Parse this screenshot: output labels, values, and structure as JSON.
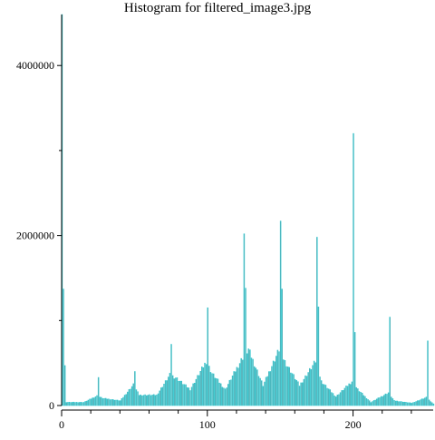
{
  "chart_data": {
    "type": "bar",
    "title": "Histogram for filtered_image3.jpg",
    "xlabel": "",
    "ylabel": "",
    "xlim": [
      0,
      255
    ],
    "ylim": [
      0,
      4600000
    ],
    "x_ticks": [
      0,
      100,
      200
    ],
    "x_minor_ticks": [
      0,
      20,
      40,
      60,
      80,
      100,
      120,
      140,
      160,
      180,
      200,
      220,
      240
    ],
    "y_ticks": [
      0,
      2000000,
      4000000
    ],
    "y_minor_ticks": [
      1000000,
      3000000
    ],
    "x_tick_labels": [
      "0",
      "100",
      "200"
    ],
    "y_tick_labels": [
      "0",
      "2000000",
      "4000000"
    ],
    "grid": false,
    "legend": "none",
    "colors": {
      "bar_fill": "#9a8f95",
      "bar_edge": "#2ec8d0",
      "axis": "#000000",
      "background": "#ffffff"
    },
    "peaks": [
      {
        "x": 0,
        "value": 4600000
      },
      {
        "x": 1,
        "value": 1370000
      },
      {
        "x": 2,
        "value": 470000
      },
      {
        "x": 25,
        "value": 330000
      },
      {
        "x": 50,
        "value": 400000
      },
      {
        "x": 75,
        "value": 720000
      },
      {
        "x": 100,
        "value": 1150000
      },
      {
        "x": 125,
        "value": 2020000
      },
      {
        "x": 126,
        "value": 1380000
      },
      {
        "x": 150,
        "value": 2170000
      },
      {
        "x": 151,
        "value": 1370000
      },
      {
        "x": 175,
        "value": 1980000
      },
      {
        "x": 176,
        "value": 1160000
      },
      {
        "x": 200,
        "value": 3200000
      },
      {
        "x": 201,
        "value": 860000
      },
      {
        "x": 225,
        "value": 1040000
      },
      {
        "x": 251,
        "value": 760000
      }
    ],
    "envelope": [
      {
        "x": 3,
        "value": 40000
      },
      {
        "x": 15,
        "value": 40000
      },
      {
        "x": 24,
        "value": 120000
      },
      {
        "x": 28,
        "value": 90000
      },
      {
        "x": 40,
        "value": 60000
      },
      {
        "x": 49,
        "value": 260000
      },
      {
        "x": 53,
        "value": 130000
      },
      {
        "x": 65,
        "value": 130000
      },
      {
        "x": 74,
        "value": 380000
      },
      {
        "x": 78,
        "value": 350000
      },
      {
        "x": 88,
        "value": 200000
      },
      {
        "x": 99,
        "value": 550000
      },
      {
        "x": 103,
        "value": 400000
      },
      {
        "x": 112,
        "value": 200000
      },
      {
        "x": 124,
        "value": 600000
      },
      {
        "x": 128,
        "value": 700000
      },
      {
        "x": 138,
        "value": 250000
      },
      {
        "x": 149,
        "value": 700000
      },
      {
        "x": 153,
        "value": 550000
      },
      {
        "x": 163,
        "value": 250000
      },
      {
        "x": 174,
        "value": 550000
      },
      {
        "x": 178,
        "value": 300000
      },
      {
        "x": 188,
        "value": 110000
      },
      {
        "x": 199,
        "value": 300000
      },
      {
        "x": 203,
        "value": 200000
      },
      {
        "x": 212,
        "value": 40000
      },
      {
        "x": 224,
        "value": 160000
      },
      {
        "x": 228,
        "value": 60000
      },
      {
        "x": 240,
        "value": 30000
      },
      {
        "x": 250,
        "value": 100000
      },
      {
        "x": 255,
        "value": 20000
      }
    ]
  }
}
